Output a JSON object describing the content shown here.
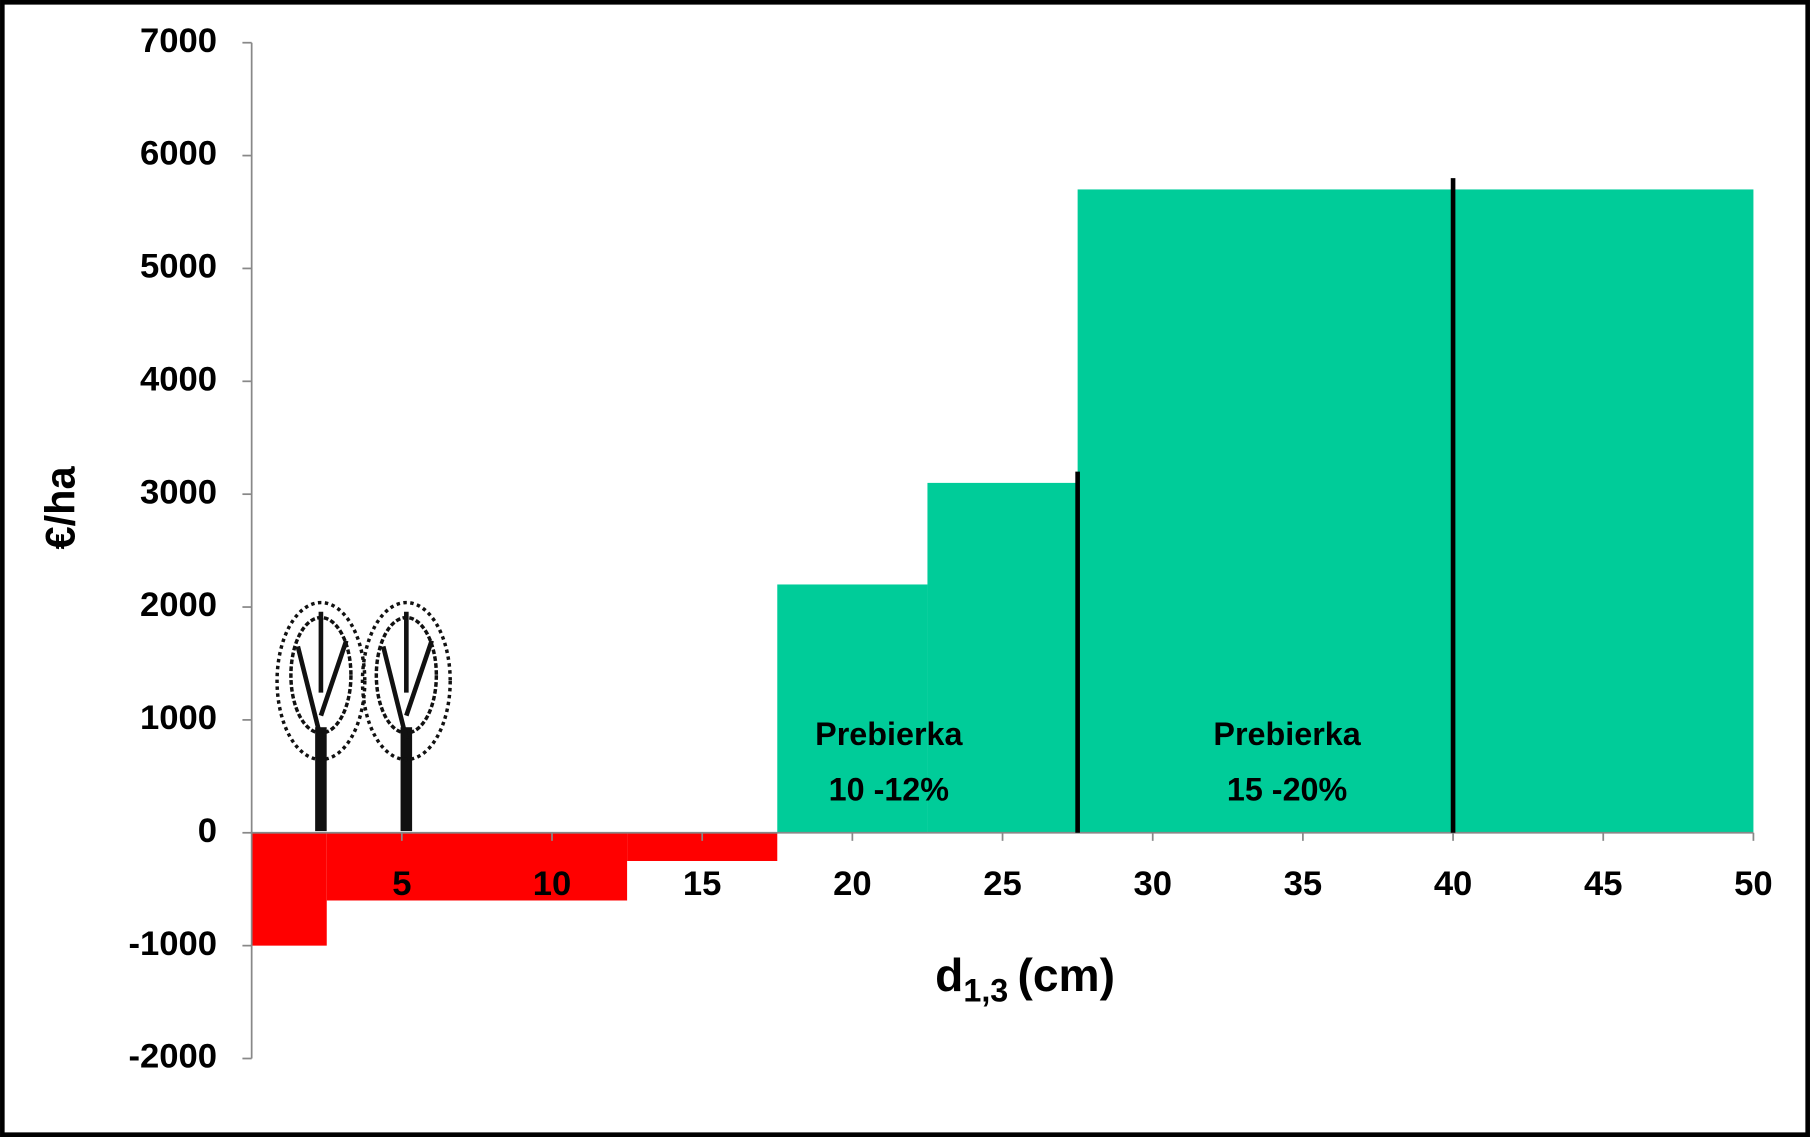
{
  "chart_data": {
    "type": "histogram",
    "ylabel": "€/ha",
    "xlabel": "d",
    "xlabel_subscript": "1,3",
    "xlabel_suffix": "(cm)",
    "bins": [
      0,
      2.5,
      12.5,
      17.5,
      22.5,
      27.5,
      50
    ],
    "values": [
      -1000,
      -600,
      -250,
      2200,
      3100,
      5700
    ],
    "colors": [
      "#ff0000",
      "#ff0000",
      "#ff0000",
      "#00cc99",
      "#00cc99",
      "#00cc99"
    ],
    "xlim": [
      0,
      50
    ],
    "xticks": [
      5,
      10,
      15,
      20,
      25,
      30,
      35,
      40,
      45,
      50
    ],
    "ylim": [
      -2000,
      7000
    ],
    "yticks": [
      -2000,
      -1000,
      0,
      1000,
      2000,
      3000,
      4000,
      5000,
      6000,
      7000
    ],
    "vlines": [
      {
        "x": 27.5,
        "top": 3200
      },
      {
        "x": 40,
        "top": 5800
      }
    ],
    "annotations": [
      [
        "Prebierka",
        "10 -12%"
      ],
      [
        "Prebierka",
        "15 -20%"
      ]
    ]
  }
}
